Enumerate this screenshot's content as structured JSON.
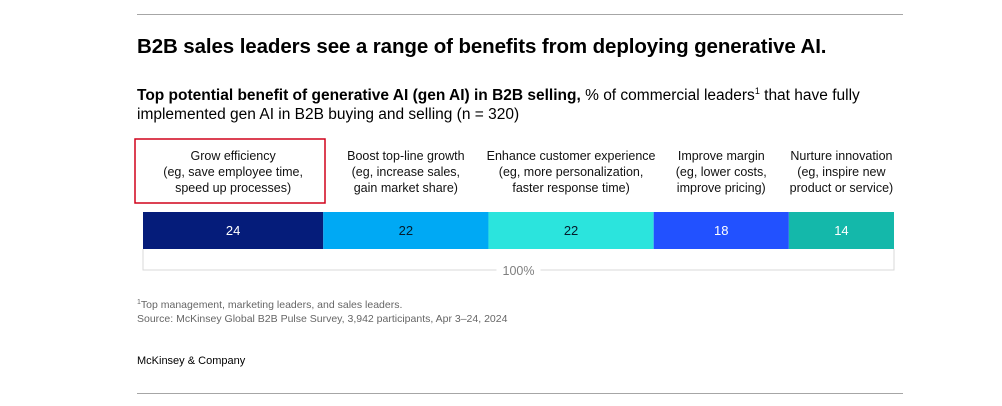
{
  "headline": "B2B sales leaders see a range of benefits from deploying generative AI.",
  "subtitle": {
    "bold": "Top potential benefit of generative AI (gen AI) in B2B selling,",
    "regular_a": " % of commercial leaders",
    "sup": "1",
    "regular_b": " that have fully implemented gen AI in B2B buying and selling (n = 320)"
  },
  "chart_data": {
    "type": "bar",
    "orientation": "horizontal-stacked",
    "total_label": "100%",
    "highlight_index": 0,
    "colors": {
      "highlight_border": "#d0021b",
      "bracket": "#d9d9d9",
      "total_label": "#7f7f7f"
    },
    "categories": [
      {
        "name": "Grow efficiency",
        "detail": [
          "(eg, save employee time,",
          "speed up processes)"
        ],
        "value": 24,
        "color": "#051c7a",
        "label_color": "#ffffff"
      },
      {
        "name": "Boost top-line growth",
        "detail": [
          "(eg, increase sales,",
          "gain market share)"
        ],
        "value": 22,
        "color": "#00a9f4",
        "label_color": "#051c2c"
      },
      {
        "name": "Enhance customer experience",
        "detail": [
          "(eg, more personalization,",
          "faster response time)"
        ],
        "value": 22,
        "color": "#2be4dd",
        "label_color": "#051c2c"
      },
      {
        "name": "Improve margin",
        "detail": [
          "(eg, lower costs,",
          "improve pricing)"
        ],
        "value": 18,
        "color": "#2251ff",
        "label_color": "#ffffff"
      },
      {
        "name": "Nurture innovation",
        "detail": [
          "(eg, inspire new",
          "product or service)"
        ],
        "value": 14,
        "color": "#14b8aa",
        "label_color": "#ffffff"
      }
    ]
  },
  "footnote": {
    "sup": "1",
    "text": "Top management, marketing leaders, and sales leaders."
  },
  "source": "Source: McKinsey Global B2B Pulse Survey, 3,942 participants, Apr 3–24, 2024",
  "brand": "McKinsey & Company"
}
